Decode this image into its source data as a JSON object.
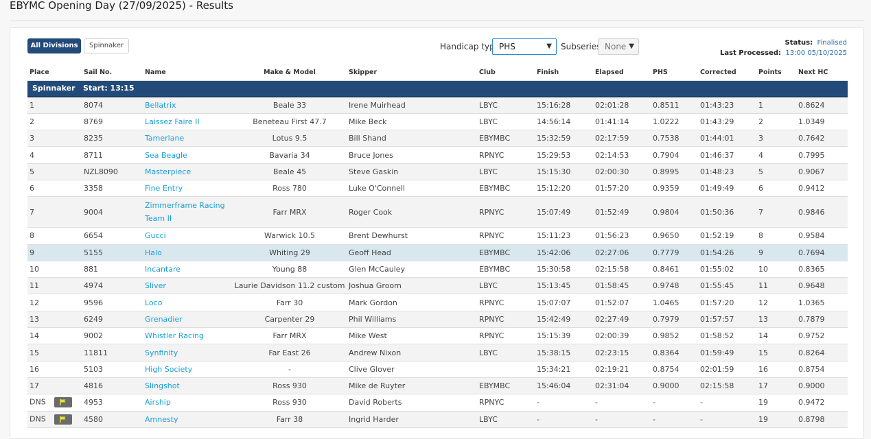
{
  "page": {
    "title": "EBYMC Opening Day (27/09/2025) - Results"
  },
  "toolbar": {
    "all_divisions": "All Divisions",
    "spinnaker": "Spinnaker",
    "handicap_label": "Handicap type:",
    "handicap_value": "PHS",
    "subseries_label": "Subseries:",
    "subseries_value": "None"
  },
  "status": {
    "status_key": "Status:",
    "status_value": "Finalised",
    "last_key": "Last Processed:",
    "last_value": "13:00 05/10/2025"
  },
  "columns": [
    "Place",
    "Sail No.",
    "Name",
    "Make & Model",
    "Skipper",
    "Club",
    "Finish",
    "Elapsed",
    "PHS",
    "Corrected",
    "Points",
    "Next HC"
  ],
  "group": {
    "label": "Spinnaker   Start: 13:15"
  },
  "rows": [
    {
      "place": "1",
      "sail": "8074",
      "name": "Bellatrix",
      "model": "Beale 33",
      "skipper": "Irene Muirhead",
      "club": "LBYC",
      "finish": "15:16:28",
      "elapsed": "02:01:28",
      "phs": "0.8511",
      "corrected": "01:43:23",
      "points": "1",
      "nexthc": "0.8624",
      "flag": false
    },
    {
      "place": "2",
      "sail": "8769",
      "name": "Laissez Faire II",
      "model": "Beneteau First 47.7",
      "skipper": "Mike Beck",
      "club": "LBYC",
      "finish": "14:56:14",
      "elapsed": "01:41:14",
      "phs": "1.0222",
      "corrected": "01:43:29",
      "points": "2",
      "nexthc": "1.0349",
      "flag": false
    },
    {
      "place": "3",
      "sail": "8235",
      "name": "Tamerlane",
      "model": "Lotus 9.5",
      "skipper": "Bill Shand",
      "club": "EBYMBC",
      "finish": "15:32:59",
      "elapsed": "02:17:59",
      "phs": "0.7538",
      "corrected": "01:44:01",
      "points": "3",
      "nexthc": "0.7642",
      "flag": false
    },
    {
      "place": "4",
      "sail": "8711",
      "name": "Sea Beagle",
      "model": "Bavaria 34",
      "skipper": "Bruce Jones",
      "club": "RPNYC",
      "finish": "15:29:53",
      "elapsed": "02:14:53",
      "phs": "0.7904",
      "corrected": "01:46:37",
      "points": "4",
      "nexthc": "0.7995",
      "flag": false
    },
    {
      "place": "5",
      "sail": "NZL8090",
      "name": "Masterpiece",
      "model": "Beale 45",
      "skipper": "Steve Gaskin",
      "club": "LBYC",
      "finish": "15:15:30",
      "elapsed": "02:00:30",
      "phs": "0.8995",
      "corrected": "01:48:23",
      "points": "5",
      "nexthc": "0.9067",
      "flag": false
    },
    {
      "place": "6",
      "sail": "3358",
      "name": "Fine Entry",
      "model": "Ross 780",
      "skipper": "Luke O'Connell",
      "club": "EBYMBC",
      "finish": "15:12:20",
      "elapsed": "01:57:20",
      "phs": "0.9359",
      "corrected": "01:49:49",
      "points": "6",
      "nexthc": "0.9412",
      "flag": false
    },
    {
      "place": "7",
      "sail": "9004",
      "name": "Zimmerframe Racing Team II",
      "model": "Farr MRX",
      "skipper": "Roger Cook",
      "club": "RPNYC",
      "finish": "15:07:49",
      "elapsed": "01:52:49",
      "phs": "0.9804",
      "corrected": "01:50:36",
      "points": "7",
      "nexthc": "0.9846",
      "flag": false
    },
    {
      "place": "8",
      "sail": "6654",
      "name": "Gucci",
      "model": "Warwick 10.5",
      "skipper": "Brent Dewhurst",
      "club": "RPNYC",
      "finish": "15:11:23",
      "elapsed": "01:56:23",
      "phs": "0.9650",
      "corrected": "01:52:19",
      "points": "8",
      "nexthc": "0.9584",
      "flag": false
    },
    {
      "place": "9",
      "sail": "5155",
      "name": "Halo",
      "model": "Whiting 29",
      "skipper": "Geoff Head",
      "club": "EBYMBC",
      "finish": "15:42:06",
      "elapsed": "02:27:06",
      "phs": "0.7779",
      "corrected": "01:54:26",
      "points": "9",
      "nexthc": "0.7694",
      "flag": false
    },
    {
      "place": "10",
      "sail": "881",
      "name": "Incantare",
      "model": "Young 88",
      "skipper": "Glen McCauley",
      "club": "EBYMBC",
      "finish": "15:30:58",
      "elapsed": "02:15:58",
      "phs": "0.8461",
      "corrected": "01:55:02",
      "points": "10",
      "nexthc": "0.8365",
      "flag": false
    },
    {
      "place": "11",
      "sail": "4974",
      "name": "Sliver",
      "model": "Laurie Davidson 11.2 custom",
      "skipper": "Joshua Groom",
      "club": "LBYC",
      "finish": "15:13:45",
      "elapsed": "01:58:45",
      "phs": "0.9748",
      "corrected": "01:55:45",
      "points": "11",
      "nexthc": "0.9648",
      "flag": false
    },
    {
      "place": "12",
      "sail": "9596",
      "name": "Loco",
      "model": "Farr 30",
      "skipper": "Mark Gordon",
      "club": "RPNYC",
      "finish": "15:07:07",
      "elapsed": "01:52:07",
      "phs": "1.0465",
      "corrected": "01:57:20",
      "points": "12",
      "nexthc": "1.0365",
      "flag": false
    },
    {
      "place": "13",
      "sail": "6249",
      "name": "Grenadier",
      "model": "Carpenter 29",
      "skipper": "Phil Williams",
      "club": "RPNYC",
      "finish": "15:42:49",
      "elapsed": "02:27:49",
      "phs": "0.7979",
      "corrected": "01:57:57",
      "points": "13",
      "nexthc": "0.7879",
      "flag": false
    },
    {
      "place": "14",
      "sail": "9002",
      "name": "Whistler Racing",
      "model": "Farr MRX",
      "skipper": "Mike West",
      "club": "RPNYC",
      "finish": "15:15:39",
      "elapsed": "02:00:39",
      "phs": "0.9852",
      "corrected": "01:58:52",
      "points": "14",
      "nexthc": "0.9752",
      "flag": false
    },
    {
      "place": "15",
      "sail": "11811",
      "name": "Synfinity",
      "model": "Far East 26",
      "skipper": "Andrew Nixon",
      "club": "LBYC",
      "finish": "15:38:15",
      "elapsed": "02:23:15",
      "phs": "0.8364",
      "corrected": "01:59:49",
      "points": "15",
      "nexthc": "0.8264",
      "flag": false
    },
    {
      "place": "16",
      "sail": "5103",
      "name": "High Society",
      "model": "-",
      "skipper": "Clive Glover",
      "club": "",
      "finish": "15:34:21",
      "elapsed": "02:19:21",
      "phs": "0.8754",
      "corrected": "02:01:59",
      "points": "16",
      "nexthc": "0.8754",
      "flag": false
    },
    {
      "place": "17",
      "sail": "4816",
      "name": "Slingshot",
      "model": "Ross 930",
      "skipper": "Mike de Ruyter",
      "club": "EBYMBC",
      "finish": "15:46:04",
      "elapsed": "02:31:04",
      "phs": "0.9000",
      "corrected": "02:15:58",
      "points": "17",
      "nexthc": "0.9000",
      "flag": false
    },
    {
      "place": "DNS",
      "sail": "4953",
      "name": "Airship",
      "model": "Ross 930",
      "skipper": "David Roberts",
      "club": "RPNYC",
      "finish": "-",
      "elapsed": "-",
      "phs": "-",
      "corrected": "-",
      "points": "19",
      "nexthc": "0.9472",
      "flag": true
    },
    {
      "place": "DNS",
      "sail": "4580",
      "name": "Amnesty",
      "model": "Farr 38",
      "skipper": "Ingrid Harder",
      "club": "LBYC",
      "finish": "-",
      "elapsed": "-",
      "phs": "-",
      "corrected": "-",
      "points": "19",
      "nexthc": "0.8798",
      "flag": true
    }
  ],
  "highlight_row_index": 8,
  "tall_row_index": 6,
  "colors": {
    "header_blue": "#234b7a",
    "link": "#1a9fd8",
    "highlight": "#d9e8ef"
  }
}
